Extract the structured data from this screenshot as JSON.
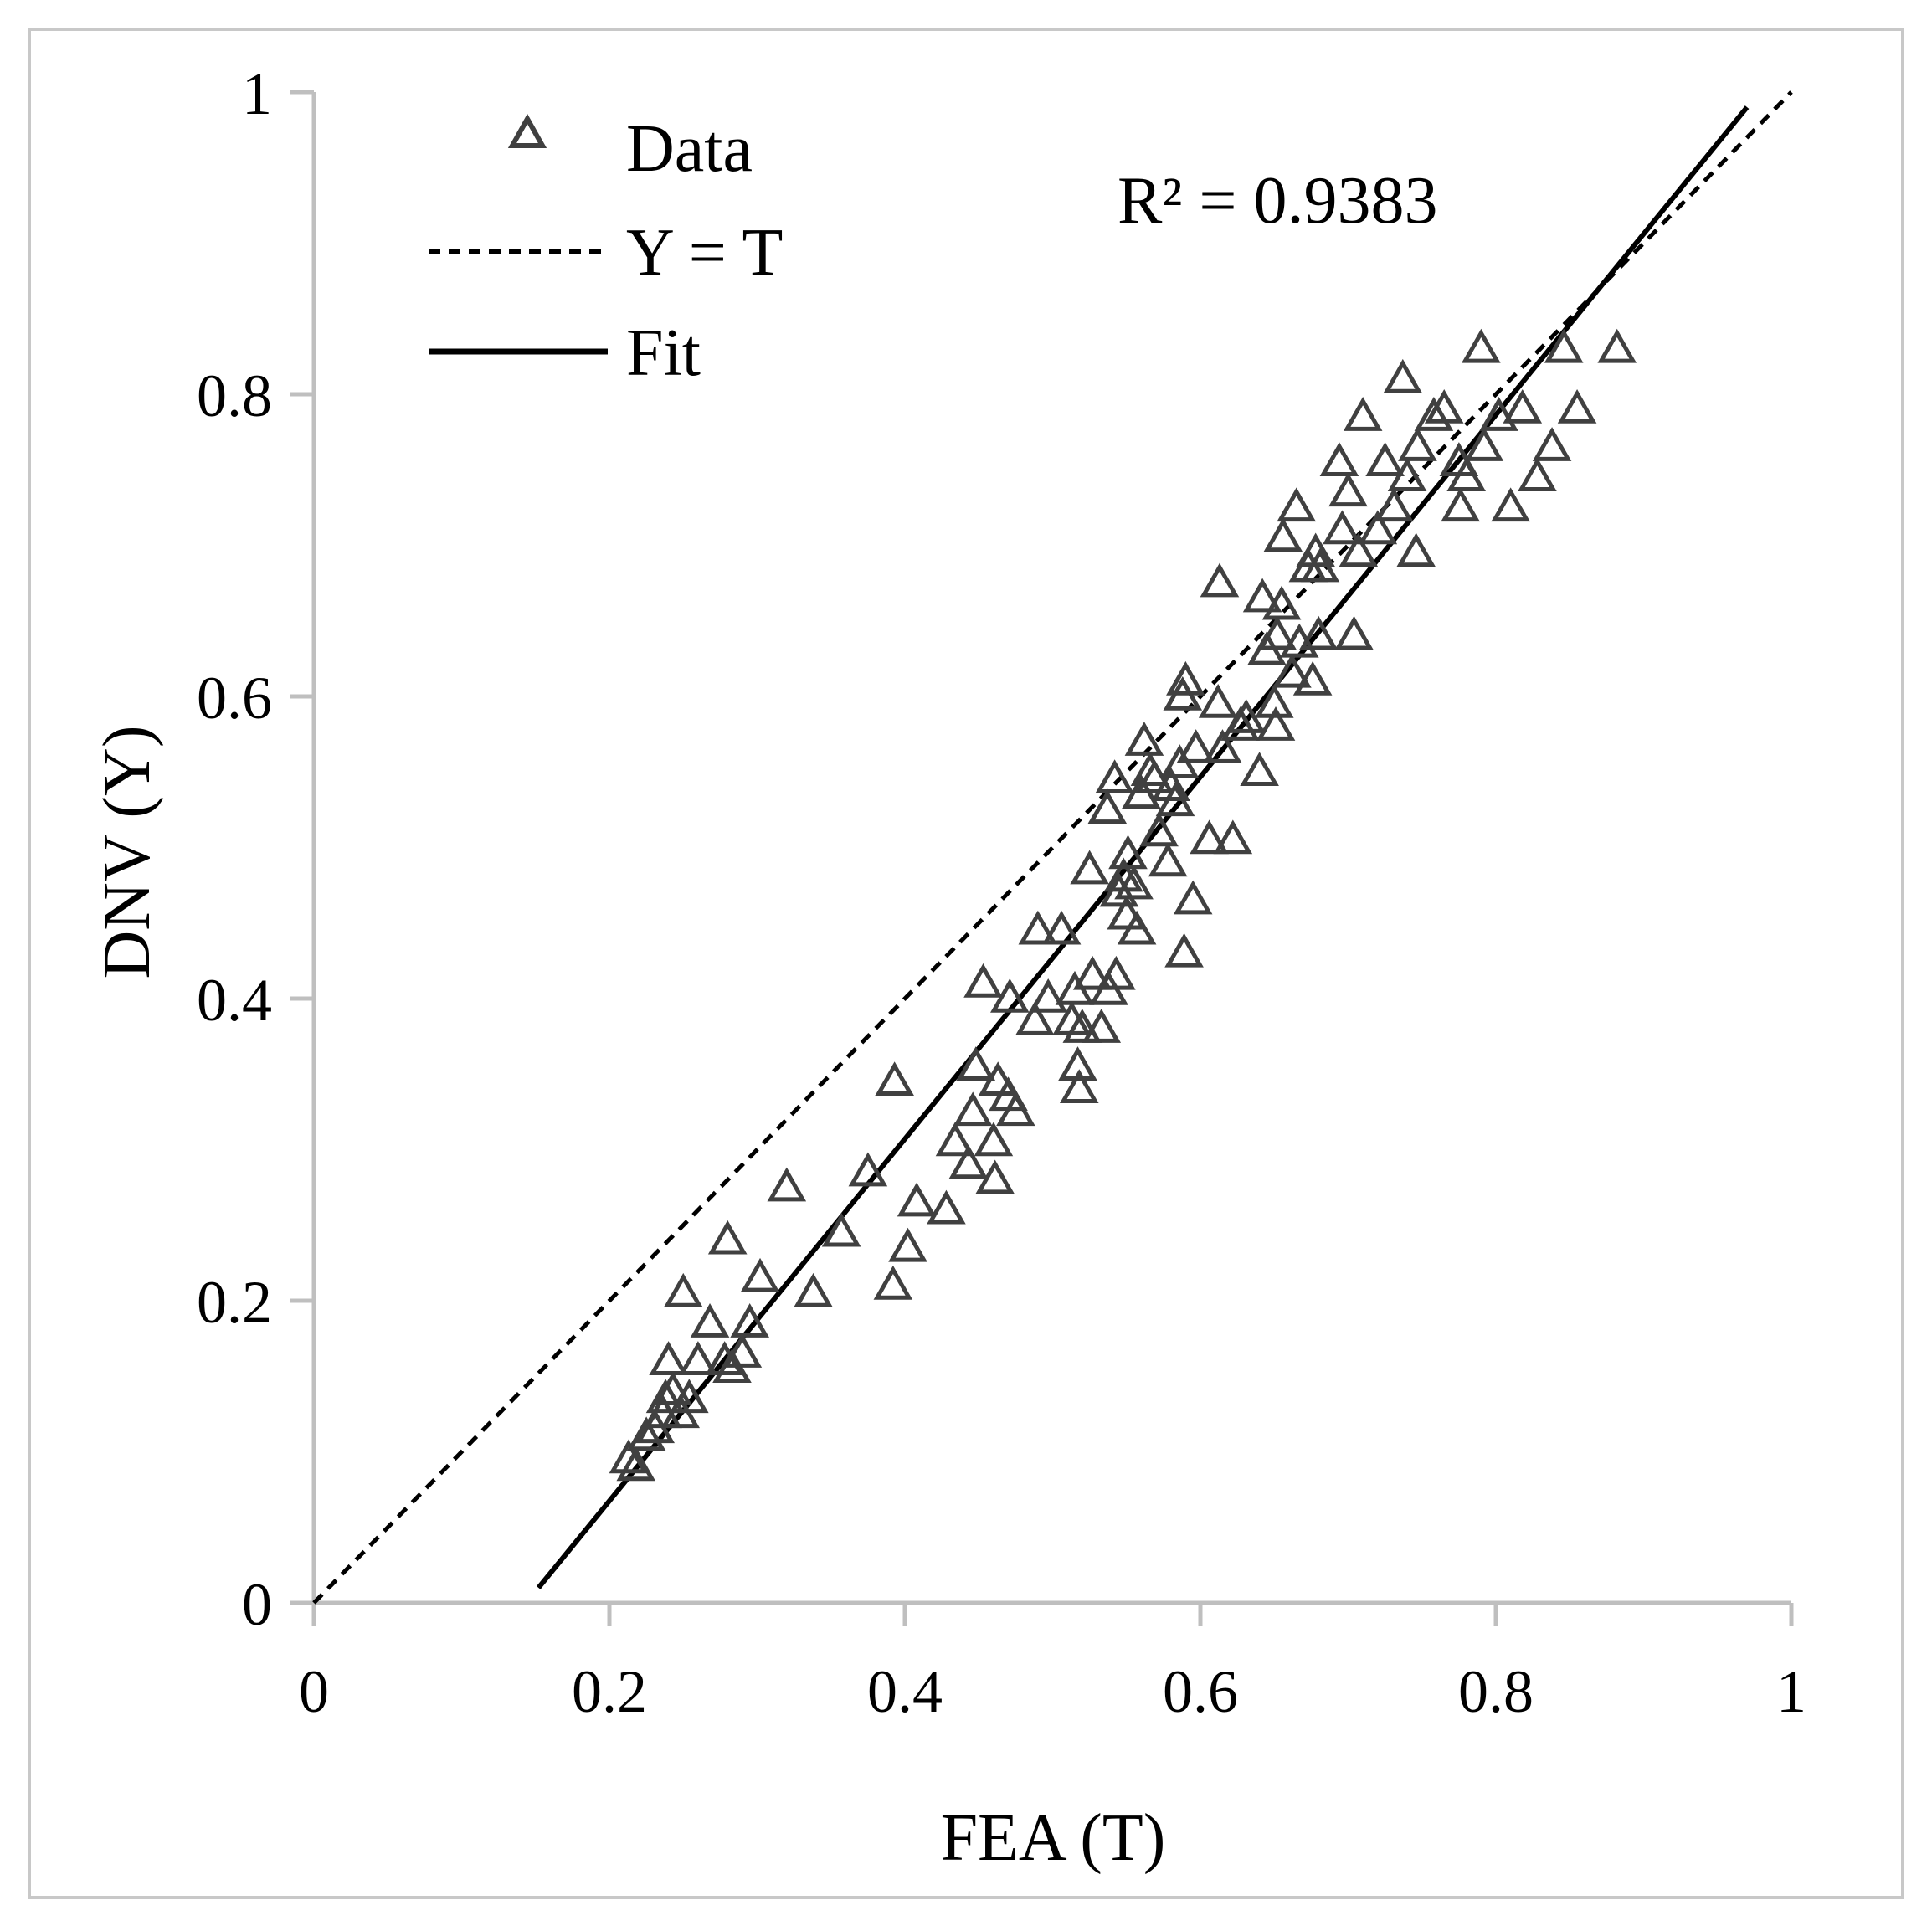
{
  "chart_data": {
    "type": "scatter",
    "xlabel": "FEA (T)",
    "ylabel": "DNV (Y)",
    "xlim": [
      0,
      1
    ],
    "ylim": [
      0,
      1
    ],
    "x_ticks": [
      "0",
      "0.2",
      "0.4",
      "0.6",
      "0.8",
      "1"
    ],
    "y_ticks": [
      "0",
      "0.2",
      "0.4",
      "0.6",
      "0.8",
      "1"
    ],
    "grid": false,
    "legend_position": "top-left",
    "annotation": "R² = 0.9383",
    "colors": {
      "points": "#404040",
      "lines": "#000000",
      "axes": "#bfbfbf"
    },
    "legend": [
      {
        "label": "Data",
        "style": "triangle-marker"
      },
      {
        "label": "Y = T",
        "style": "dashed"
      },
      {
        "label": "Fit",
        "style": "solid"
      }
    ],
    "series": [
      {
        "name": "Data",
        "marker": "triangle-open",
        "points": [
          [
            0.213,
            0.095
          ],
          [
            0.218,
            0.09
          ],
          [
            0.225,
            0.11
          ],
          [
            0.231,
            0.115
          ],
          [
            0.236,
            0.125
          ],
          [
            0.238,
            0.135
          ],
          [
            0.24,
            0.16
          ],
          [
            0.243,
            0.14
          ],
          [
            0.248,
            0.125
          ],
          [
            0.25,
            0.205
          ],
          [
            0.254,
            0.135
          ],
          [
            0.26,
            0.16
          ],
          [
            0.268,
            0.185
          ],
          [
            0.278,
            0.16
          ],
          [
            0.28,
            0.24
          ],
          [
            0.283,
            0.155
          ],
          [
            0.29,
            0.165
          ],
          [
            0.295,
            0.185
          ],
          [
            0.302,
            0.215
          ],
          [
            0.32,
            0.275
          ],
          [
            0.338,
            0.205
          ],
          [
            0.357,
            0.245
          ],
          [
            0.375,
            0.285
          ],
          [
            0.393,
            0.345
          ],
          [
            0.392,
            0.21
          ],
          [
            0.402,
            0.235
          ],
          [
            0.408,
            0.265
          ],
          [
            0.428,
            0.26
          ],
          [
            0.434,
            0.305
          ],
          [
            0.443,
            0.29
          ],
          [
            0.446,
            0.325
          ],
          [
            0.448,
            0.355
          ],
          [
            0.453,
            0.41
          ],
          [
            0.46,
            0.305
          ],
          [
            0.461,
            0.28
          ],
          [
            0.463,
            0.345
          ],
          [
            0.47,
            0.335
          ],
          [
            0.471,
            0.4
          ],
          [
            0.475,
            0.325
          ],
          [
            0.488,
            0.385
          ],
          [
            0.49,
            0.445
          ],
          [
            0.497,
            0.4
          ],
          [
            0.506,
            0.445
          ],
          [
            0.513,
            0.385
          ],
          [
            0.515,
            0.405
          ],
          [
            0.517,
            0.355
          ],
          [
            0.518,
            0.34
          ],
          [
            0.52,
            0.38
          ],
          [
            0.525,
            0.485
          ],
          [
            0.527,
            0.415
          ],
          [
            0.533,
            0.38
          ],
          [
            0.537,
            0.525
          ],
          [
            0.538,
            0.405
          ],
          [
            0.542,
            0.545
          ],
          [
            0.543,
            0.415
          ],
          [
            0.545,
            0.47
          ],
          [
            0.548,
            0.48
          ],
          [
            0.55,
            0.455
          ],
          [
            0.551,
            0.495
          ],
          [
            0.555,
            0.475
          ],
          [
            0.557,
            0.445
          ],
          [
            0.56,
            0.535
          ],
          [
            0.562,
            0.57
          ],
          [
            0.566,
            0.55
          ],
          [
            0.569,
            0.545
          ],
          [
            0.572,
            0.51
          ],
          [
            0.578,
            0.49
          ],
          [
            0.58,
            0.54
          ],
          [
            0.583,
            0.53
          ],
          [
            0.586,
            0.555
          ],
          [
            0.588,
            0.6
          ],
          [
            0.59,
            0.61
          ],
          [
            0.589,
            0.43
          ],
          [
            0.595,
            0.465
          ],
          [
            0.597,
            0.565
          ],
          [
            0.606,
            0.505
          ],
          [
            0.612,
            0.595
          ],
          [
            0.613,
            0.675
          ],
          [
            0.615,
            0.565
          ],
          [
            0.622,
            0.505
          ],
          [
            0.627,
            0.58
          ],
          [
            0.631,
            0.585
          ],
          [
            0.64,
            0.55
          ],
          [
            0.642,
            0.665
          ],
          [
            0.645,
            0.63
          ],
          [
            0.65,
            0.595
          ],
          [
            0.652,
            0.64
          ],
          [
            0.651,
            0.58
          ],
          [
            0.655,
            0.66
          ],
          [
            0.656,
            0.705
          ],
          [
            0.662,
            0.615
          ],
          [
            0.665,
            0.725
          ],
          [
            0.667,
            0.635
          ],
          [
            0.673,
            0.685
          ],
          [
            0.676,
            0.61
          ],
          [
            0.678,
            0.695
          ],
          [
            0.68,
            0.64
          ],
          [
            0.681,
            0.685
          ],
          [
            0.694,
            0.755
          ],
          [
            0.696,
            0.71
          ],
          [
            0.7,
            0.735
          ],
          [
            0.704,
            0.64
          ],
          [
            0.707,
            0.695
          ],
          [
            0.71,
            0.785
          ],
          [
            0.72,
            0.71
          ],
          [
            0.725,
            0.755
          ],
          [
            0.731,
            0.725
          ],
          [
            0.737,
            0.81
          ],
          [
            0.74,
            0.745
          ],
          [
            0.746,
            0.695
          ],
          [
            0.747,
            0.765
          ],
          [
            0.758,
            0.785
          ],
          [
            0.765,
            0.79
          ],
          [
            0.775,
            0.755
          ],
          [
            0.776,
            0.725
          ],
          [
            0.78,
            0.745
          ],
          [
            0.79,
            0.83
          ],
          [
            0.792,
            0.765
          ],
          [
            0.802,
            0.785
          ],
          [
            0.81,
            0.725
          ],
          [
            0.818,
            0.79
          ],
          [
            0.828,
            0.745
          ],
          [
            0.838,
            0.765
          ],
          [
            0.846,
            0.83
          ],
          [
            0.855,
            0.79
          ],
          [
            0.882,
            0.83
          ]
        ]
      },
      {
        "name": "Y = T",
        "line": "dashed",
        "from": [
          0,
          0
        ],
        "to": [
          1,
          1
        ]
      },
      {
        "name": "Fit",
        "line": "solid",
        "from": [
          0.152,
          0.01
        ],
        "to": [
          0.97,
          0.99
        ]
      }
    ]
  }
}
